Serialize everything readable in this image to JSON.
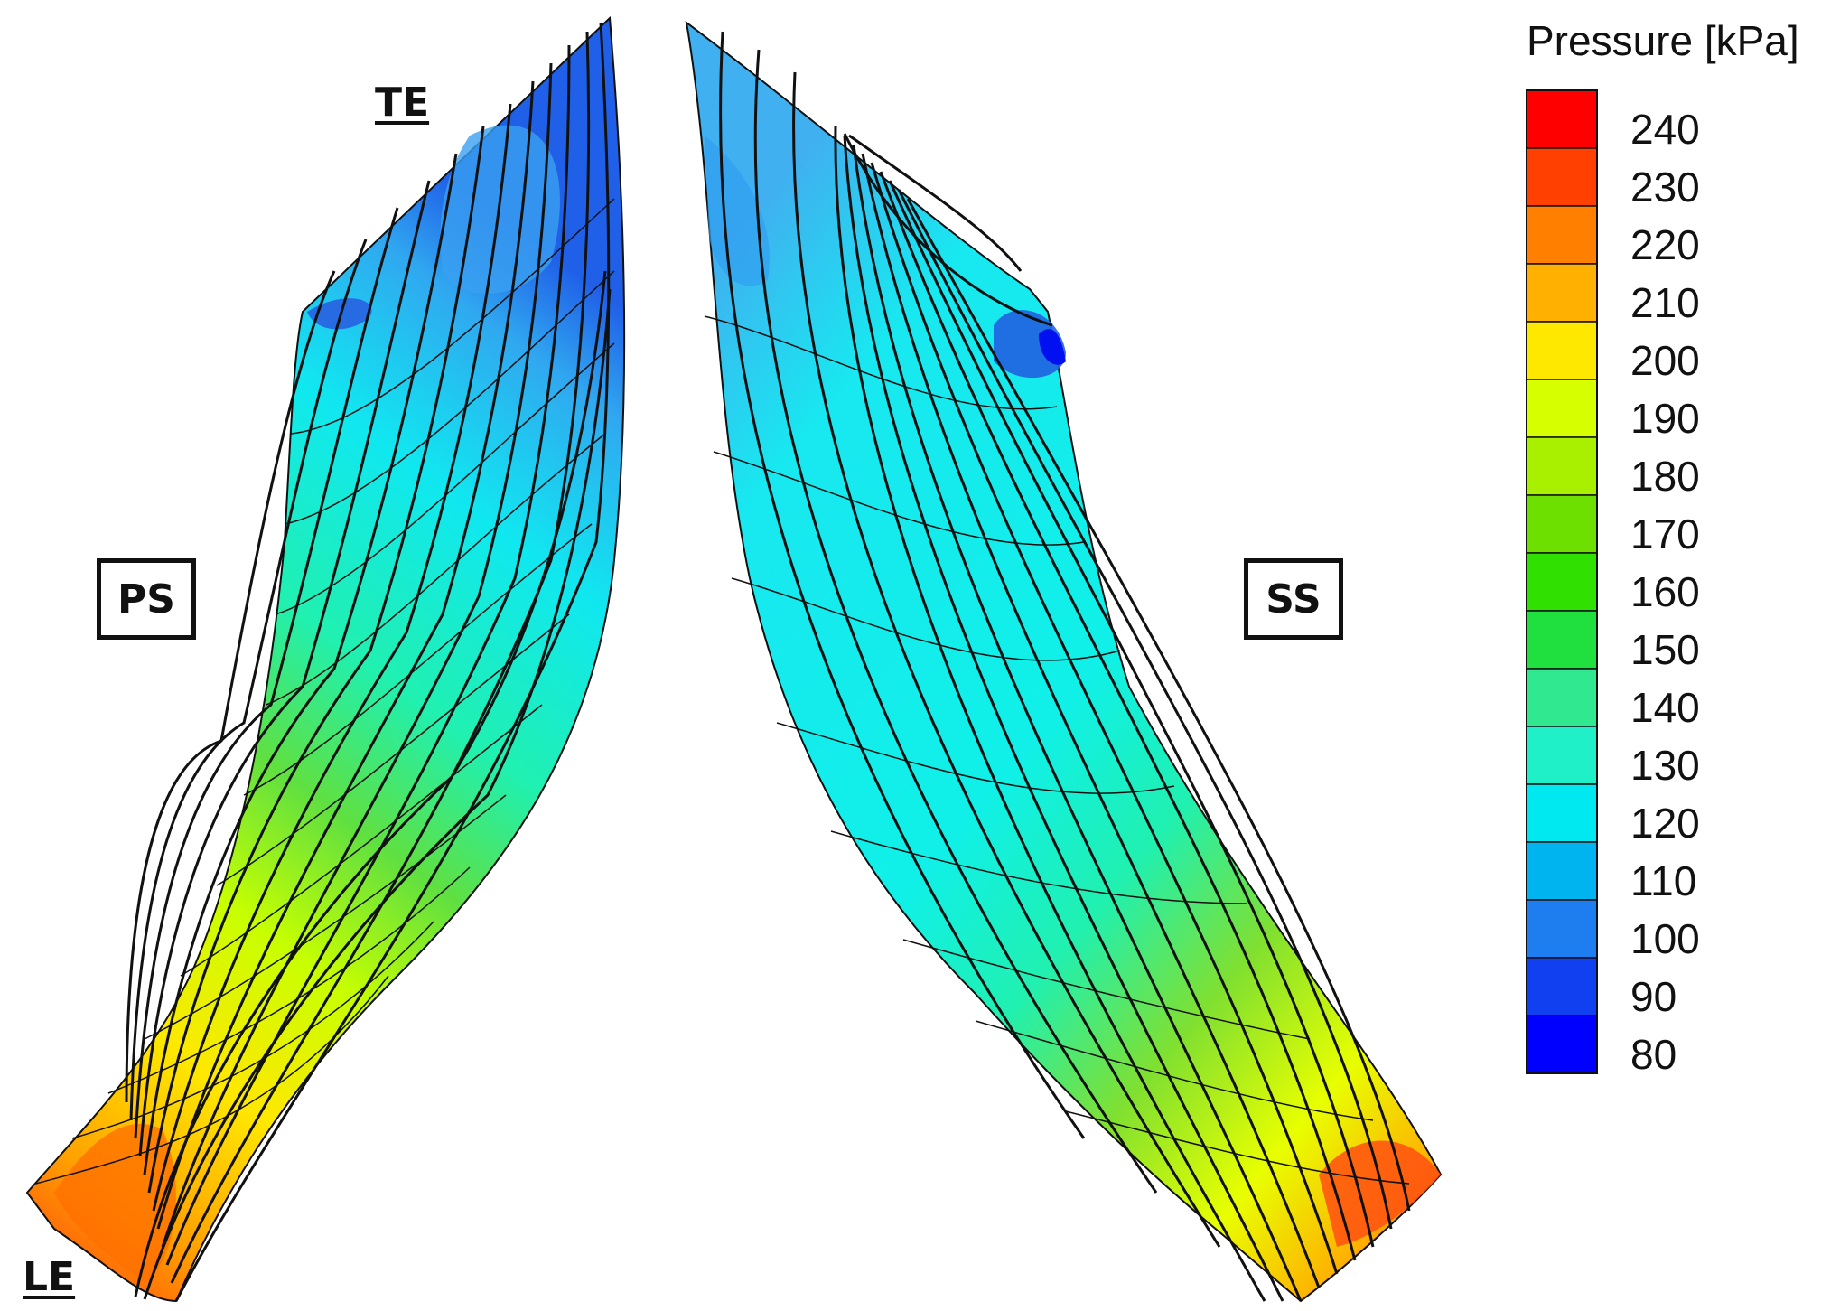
{
  "labels": {
    "te": "TE",
    "le": "LE",
    "ps": "PS",
    "ss": "SS"
  },
  "legend": {
    "title": "Pressure [kPa]",
    "ticks": [
      "240",
      "230",
      "220",
      "210",
      "200",
      "190",
      "180",
      "170",
      "160",
      "150",
      "140",
      "130",
      "120",
      "110",
      "100",
      "90",
      "80"
    ],
    "colors": [
      "#ff0000",
      "#ff4000",
      "#ff8000",
      "#ffb000",
      "#ffe800",
      "#d6ff00",
      "#a8f000",
      "#6ee000",
      "#30e000",
      "#20e040",
      "#30e890",
      "#20f0c8",
      "#00e8f0",
      "#00b4f0",
      "#1e7ef0",
      "#1040f0",
      "#0000ff"
    ]
  }
}
